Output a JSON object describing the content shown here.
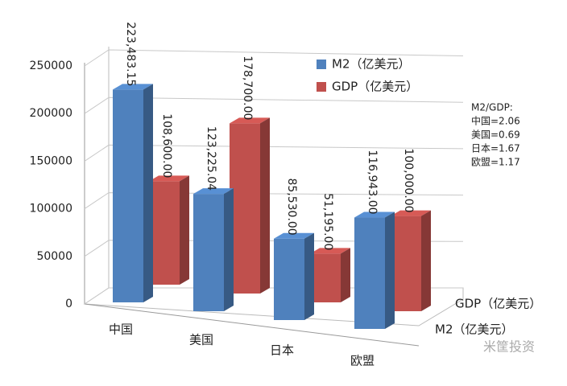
{
  "chart_data": {
    "type": "bar3d",
    "categories": [
      "中国",
      "美国",
      "日本",
      "欧盟"
    ],
    "series": [
      {
        "name": "M2（亿美元）",
        "color": "#4f81bd",
        "values": [
          223483.15,
          123225.04,
          85530.0,
          116943.0
        ],
        "value_labels": [
          "223,483.15",
          "123,225.04",
          "85,530.00",
          "116,943.00"
        ]
      },
      {
        "name": "GDP（亿美元）",
        "color": "#c0504d",
        "values": [
          108600.0,
          178700.0,
          51195.0,
          100000.0
        ],
        "value_labels": [
          "108,600.00",
          "178,700.00",
          "51,195.00",
          "100,000.00"
        ]
      }
    ],
    "ylim": [
      0,
      250000
    ],
    "yticks": [
      0,
      50000,
      100000,
      150000,
      200000,
      250000
    ],
    "grid": true,
    "annotation": [
      "M2/GDP:",
      "中国=2.06",
      "美国=0.69",
      "日本=1.67",
      "欧盟=1.17"
    ],
    "watermark": "米筐投资"
  }
}
